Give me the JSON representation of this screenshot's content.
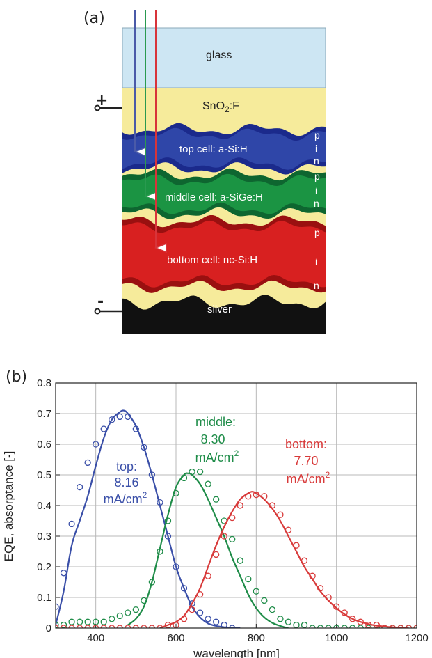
{
  "panel_a": {
    "label": "(a)",
    "plus_sign": "+",
    "minus_sign": "-",
    "layers": {
      "glass": "glass",
      "sno2_main": "SnO",
      "sno2_sub": "2",
      "sno2_tail": ":F",
      "top": "top cell: a-Si:H",
      "middle": "middle cell: a-SiGe:H",
      "bottom": "bottom cell: nc-Si:H",
      "silver": "silver"
    },
    "pin_top": [
      "p",
      "i",
      "n"
    ],
    "pin_middle": [
      "p",
      "i",
      "n"
    ],
    "pin_bottom": [
      "p",
      "i",
      "n"
    ],
    "colors": {
      "glass": "#cde6f3",
      "tco": "#f6eb9b",
      "top_dark": "#1b2a8c",
      "top": "#2f46a8",
      "middle_dark": "#0e6630",
      "middle": "#1b9443",
      "bottom_dark": "#9a1010",
      "bottom": "#d82020",
      "silver": "#111111",
      "arrow_blue": "#4a5aa8",
      "arrow_green": "#2a9a50",
      "arrow_red": "#d8343a"
    }
  },
  "panel_b": {
    "label": "(b)",
    "annotations": {
      "top": [
        "top:",
        "8.16",
        "mA/cm",
        "2"
      ],
      "middle": [
        "middle:",
        "8.30",
        "mA/cm",
        "2"
      ],
      "bottom": [
        "bottom:",
        "7.70",
        "mA/cm",
        "2"
      ]
    }
  },
  "chart_data": {
    "type": "line",
    "title": "",
    "xlabel": "wavelength [nm]",
    "ylabel": "EQE, absorptance [-]",
    "xlim": [
      300,
      1200
    ],
    "ylim": [
      0,
      0.8
    ],
    "xticks": [
      400,
      600,
      800,
      1000,
      1200
    ],
    "yticks": [
      0,
      0.1,
      0.2,
      0.3,
      0.4,
      0.5,
      0.6,
      0.7,
      0.8
    ],
    "ytick_labels": [
      "0",
      "0.1",
      "0.2",
      "0.3",
      "0.4",
      "0.5",
      "0.6",
      "0.7",
      "0.8"
    ],
    "xtick_labels": [
      "400",
      "600",
      "800",
      "1000",
      "1200"
    ],
    "grid": true,
    "series": [
      {
        "kind": "absorptance-line",
        "color": "#3a4fa8",
        "x": [
          300,
          320,
          340,
          360,
          380,
          400,
          420,
          440,
          460,
          470,
          480,
          500,
          520,
          540,
          560,
          580,
          600,
          620,
          640,
          660,
          680,
          700,
          720,
          740,
          760
        ],
        "y": [
          0.01,
          0.12,
          0.27,
          0.35,
          0.43,
          0.53,
          0.62,
          0.68,
          0.705,
          0.71,
          0.7,
          0.66,
          0.59,
          0.5,
          0.4,
          0.3,
          0.2,
          0.13,
          0.07,
          0.035,
          0.015,
          0.007,
          0.003,
          0.001,
          0.0
        ]
      },
      {
        "kind": "eqe-markers",
        "color": "#3a4fa8",
        "x": [
          300,
          320,
          340,
          360,
          380,
          400,
          420,
          440,
          460,
          480,
          500,
          520,
          540,
          560,
          580,
          600,
          620,
          640,
          660,
          680,
          700,
          720,
          740
        ],
        "y": [
          0.07,
          0.18,
          0.34,
          0.46,
          0.54,
          0.6,
          0.65,
          0.68,
          0.69,
          0.69,
          0.65,
          0.59,
          0.5,
          0.41,
          0.3,
          0.2,
          0.13,
          0.08,
          0.05,
          0.03,
          0.02,
          0.01,
          0.0
        ]
      },
      {
        "kind": "absorptance-line",
        "color": "#1e8c48",
        "x": [
          480,
          500,
          520,
          540,
          560,
          580,
          600,
          620,
          630,
          640,
          660,
          680,
          700,
          720,
          740,
          760,
          780,
          800,
          820,
          840,
          860,
          880
        ],
        "y": [
          0.01,
          0.03,
          0.07,
          0.15,
          0.26,
          0.37,
          0.46,
          0.5,
          0.505,
          0.5,
          0.47,
          0.42,
          0.36,
          0.3,
          0.23,
          0.17,
          0.11,
          0.065,
          0.035,
          0.017,
          0.007,
          0.0
        ]
      },
      {
        "kind": "eqe-markers",
        "color": "#1e8c48",
        "x": [
          300,
          320,
          340,
          360,
          380,
          400,
          420,
          440,
          460,
          480,
          500,
          520,
          540,
          560,
          580,
          600,
          620,
          640,
          660,
          680,
          700,
          720,
          740,
          760,
          780,
          800,
          820,
          840,
          860,
          880,
          900,
          920,
          940,
          960,
          980,
          1000,
          1020,
          1040,
          1060,
          1080,
          1100,
          1120,
          1140,
          1160,
          1180,
          1200
        ],
        "y": [
          0.01,
          0.01,
          0.02,
          0.02,
          0.02,
          0.02,
          0.02,
          0.03,
          0.04,
          0.05,
          0.06,
          0.09,
          0.15,
          0.25,
          0.35,
          0.44,
          0.49,
          0.51,
          0.51,
          0.47,
          0.42,
          0.35,
          0.29,
          0.22,
          0.16,
          0.12,
          0.09,
          0.06,
          0.03,
          0.02,
          0.01,
          0.01,
          0.0,
          0.0,
          0.0,
          0.0,
          0.0,
          0.0,
          0.0,
          0.0,
          0.0,
          0.0,
          0.0,
          0.0,
          0.0,
          0.0
        ]
      },
      {
        "kind": "absorptance-line",
        "color": "#d83a3a",
        "x": [
          560,
          580,
          600,
          620,
          640,
          660,
          680,
          700,
          720,
          740,
          760,
          780,
          790,
          800,
          820,
          840,
          860,
          880,
          900,
          920,
          940,
          960,
          980,
          1000,
          1020,
          1040,
          1060,
          1080,
          1100,
          1120,
          1140,
          1160,
          1180
        ],
        "y": [
          0.0,
          0.01,
          0.02,
          0.04,
          0.08,
          0.13,
          0.2,
          0.27,
          0.33,
          0.38,
          0.42,
          0.44,
          0.445,
          0.44,
          0.42,
          0.39,
          0.35,
          0.3,
          0.25,
          0.2,
          0.16,
          0.12,
          0.09,
          0.065,
          0.045,
          0.03,
          0.02,
          0.013,
          0.008,
          0.005,
          0.003,
          0.001,
          0.0
        ]
      },
      {
        "kind": "eqe-markers",
        "color": "#d83a3a",
        "x": [
          300,
          320,
          340,
          360,
          380,
          400,
          420,
          440,
          460,
          480,
          500,
          520,
          540,
          560,
          580,
          600,
          620,
          640,
          660,
          680,
          700,
          720,
          740,
          760,
          780,
          800,
          820,
          840,
          860,
          880,
          900,
          920,
          940,
          960,
          980,
          1000,
          1020,
          1040,
          1060,
          1080,
          1100,
          1120,
          1140,
          1160,
          1180,
          1200
        ],
        "y": [
          0.0,
          0.0,
          0.0,
          0.0,
          0.0,
          0.0,
          0.0,
          0.0,
          0.0,
          0.0,
          0.0,
          0.0,
          0.0,
          0.0,
          0.01,
          0.01,
          0.03,
          0.06,
          0.11,
          0.17,
          0.24,
          0.3,
          0.36,
          0.4,
          0.43,
          0.435,
          0.43,
          0.4,
          0.37,
          0.32,
          0.27,
          0.22,
          0.17,
          0.13,
          0.1,
          0.07,
          0.05,
          0.03,
          0.02,
          0.01,
          0.01,
          0.0,
          0.0,
          0.0,
          0.0,
          0.0
        ]
      }
    ]
  }
}
